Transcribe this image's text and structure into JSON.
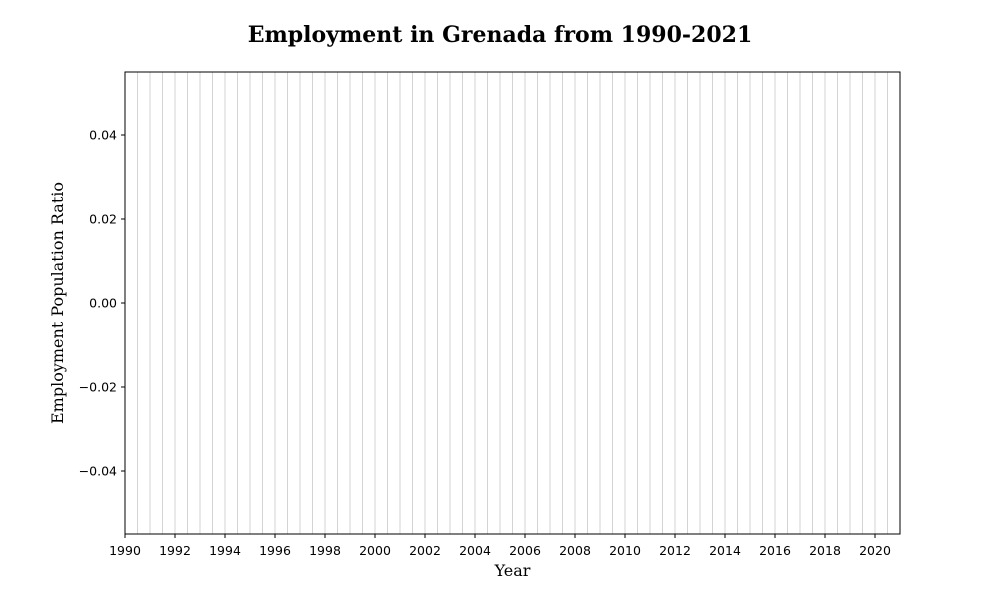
{
  "chart_data": {
    "type": "line",
    "title": "Employment in Grenada from 1990-2021",
    "xlabel": "Year",
    "ylabel": "Employment Population Ratio",
    "xlim": [
      1990,
      2021
    ],
    "ylim": [
      -0.055,
      0.055
    ],
    "x_ticks": [
      1990,
      1992,
      1994,
      1996,
      1998,
      2000,
      2002,
      2004,
      2006,
      2008,
      2010,
      2012,
      2014,
      2016,
      2018,
      2020
    ],
    "x_tick_labels": [
      "1990",
      "1992",
      "1994",
      "1996",
      "1998",
      "2000",
      "2002",
      "2004",
      "2006",
      "2008",
      "2010",
      "2012",
      "2014",
      "2016",
      "2018",
      "2020"
    ],
    "y_ticks": [
      0.04,
      0.02,
      0.0,
      -0.02,
      -0.04
    ],
    "y_tick_labels": [
      "0.04",
      "0.02",
      "0.00",
      "−0.02",
      "−0.04"
    ],
    "grid": "vertical",
    "grid_step": 0.5,
    "grid_color": "#c8c8c8",
    "series": []
  }
}
